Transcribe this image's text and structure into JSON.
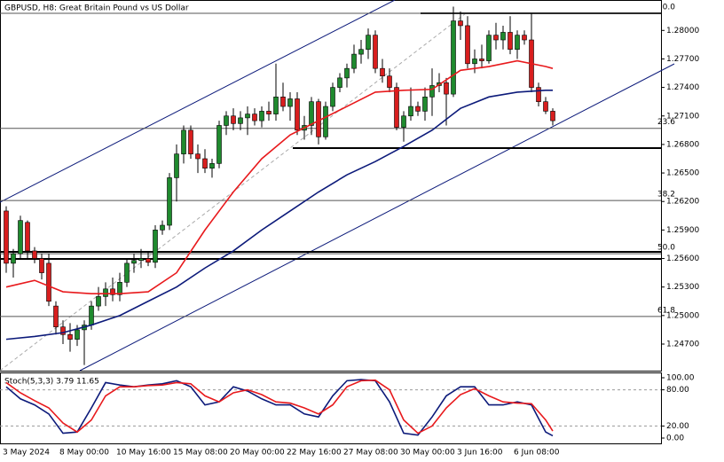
{
  "chart_data": [
    {
      "type": "candlestick",
      "title": "GBPUSD, H8:  Great Britain Pound vs US Dollar",
      "categories": [
        "3 May 2024",
        null,
        null,
        null,
        null,
        null,
        null,
        null,
        "8 May 00:00",
        null,
        null,
        null,
        null,
        null,
        null,
        null,
        "10 May 16:00",
        null,
        null,
        null,
        null,
        null,
        null,
        null,
        "15 May 08:00",
        null,
        null,
        null,
        null,
        null,
        null,
        null,
        "20 May 00:00",
        null,
        null,
        null,
        null,
        null,
        null,
        null,
        "22 May 16:00",
        null,
        null,
        null,
        null,
        null,
        null,
        null,
        "27 May 08:00",
        null,
        null,
        null,
        null,
        null,
        null,
        null,
        "30 May 00:00",
        null,
        null,
        null,
        null,
        null,
        null,
        null,
        "3 Jun 16:00",
        null,
        null,
        null,
        null,
        null,
        null,
        null,
        "6 Jun 08:00",
        null,
        null,
        null,
        null,
        null
      ],
      "open": [
        1.261,
        1.2555,
        1.2565,
        1.2598,
        1.2568,
        1.256,
        1.2555,
        1.251,
        1.2488,
        1.248,
        1.2475,
        1.2485,
        1.249,
        1.251,
        1.252,
        1.2528,
        1.2522,
        1.2535,
        1.2555,
        1.2558,
        1.256,
        1.2556,
        1.259,
        1.2595,
        1.2645,
        1.267,
        1.2695,
        1.267,
        1.2665,
        1.2655,
        1.266,
        1.27,
        1.271,
        1.2702,
        1.2708,
        1.2712,
        1.2705,
        1.2715,
        1.2712,
        1.273,
        1.272,
        1.2728,
        1.2695,
        1.27,
        1.2725,
        1.2688,
        1.272,
        1.274,
        1.275,
        1.276,
        1.2775,
        1.278,
        1.2795,
        1.276,
        1.2752,
        1.274,
        1.2698,
        1.271,
        1.272,
        1.2715,
        1.273,
        1.2742,
        1.2745,
        1.2733,
        1.281,
        1.2805,
        1.2765,
        1.277,
        1.2768,
        1.2795,
        1.279,
        1.2798,
        1.278,
        1.2795,
        1.279,
        1.274,
        1.2725,
        1.2715
      ],
      "high": [
        1.2615,
        1.257,
        1.2605,
        1.26,
        1.2572,
        1.2565,
        1.2565,
        1.2515,
        1.2495,
        1.2492,
        1.249,
        1.2495,
        1.2515,
        1.253,
        1.2535,
        1.254,
        1.2545,
        1.256,
        1.2565,
        1.257,
        1.2568,
        1.2595,
        1.26,
        1.265,
        1.268,
        1.27,
        1.27,
        1.268,
        1.2675,
        1.2665,
        1.2705,
        1.2715,
        1.2718,
        1.2715,
        1.272,
        1.2718,
        1.272,
        1.2725,
        1.2765,
        1.2745,
        1.2735,
        1.2735,
        1.271,
        1.273,
        1.2728,
        1.2725,
        1.2745,
        1.2755,
        1.2765,
        1.2785,
        1.279,
        1.2802,
        1.28,
        1.277,
        1.276,
        1.2745,
        1.2715,
        1.274,
        1.2725,
        1.274,
        1.276,
        1.2755,
        1.275,
        1.2825,
        1.282,
        1.2815,
        1.278,
        1.2785,
        1.28,
        1.2808,
        1.2805,
        1.2815,
        1.28,
        1.28,
        1.2818,
        1.2745,
        1.273,
        1.2718
      ],
      "low": [
        1.2545,
        1.254,
        1.256,
        1.256,
        1.2555,
        1.2538,
        1.251,
        1.248,
        1.247,
        1.2462,
        1.2468,
        1.2448,
        1.2485,
        1.2505,
        1.251,
        1.2515,
        1.2515,
        1.253,
        1.2545,
        1.255,
        1.2552,
        1.255,
        1.2585,
        1.259,
        1.262,
        1.266,
        1.2665,
        1.265,
        1.265,
        1.2645,
        1.2655,
        1.269,
        1.2695,
        1.2695,
        1.269,
        1.27,
        1.2698,
        1.2705,
        1.2705,
        1.2715,
        1.2705,
        1.269,
        1.2685,
        1.269,
        1.268,
        1.2685,
        1.2715,
        1.2735,
        1.274,
        1.2755,
        1.2765,
        1.277,
        1.2755,
        1.2745,
        1.2735,
        1.2695,
        1.2683,
        1.2705,
        1.271,
        1.2705,
        1.271,
        1.2735,
        1.27,
        1.273,
        1.279,
        1.276,
        1.2755,
        1.276,
        1.2765,
        1.278,
        1.278,
        1.2775,
        1.277,
        1.2785,
        1.2735,
        1.272,
        1.2712,
        1.27
      ],
      "close": [
        1.2555,
        1.2565,
        1.26,
        1.2568,
        1.256,
        1.2545,
        1.2515,
        1.2488,
        1.248,
        1.2475,
        1.2485,
        1.249,
        1.251,
        1.252,
        1.2528,
        1.2522,
        1.2535,
        1.2555,
        1.2558,
        1.256,
        1.2556,
        1.259,
        1.2595,
        1.2645,
        1.267,
        1.2695,
        1.267,
        1.2665,
        1.2655,
        1.266,
        1.27,
        1.271,
        1.2702,
        1.2708,
        1.2712,
        1.2705,
        1.2715,
        1.2712,
        1.273,
        1.272,
        1.2728,
        1.2695,
        1.27,
        1.2725,
        1.2688,
        1.272,
        1.274,
        1.275,
        1.276,
        1.2775,
        1.278,
        1.2795,
        1.276,
        1.2752,
        1.274,
        1.2698,
        1.271,
        1.272,
        1.2715,
        1.273,
        1.2742,
        1.2745,
        1.2733,
        1.281,
        1.2805,
        1.2765,
        1.277,
        1.2768,
        1.2795,
        1.279,
        1.2798,
        1.278,
        1.2795,
        1.279,
        1.274,
        1.2725,
        1.2715,
        1.2705
      ],
      "up_color": "#1f8a2e",
      "down_color": "#d81e1e",
      "overlays": [
        {
          "color": "#e8191c",
          "x": [
            0,
            4,
            8,
            12,
            16,
            20,
            24,
            28,
            32,
            36,
            40,
            44,
            48,
            52,
            56,
            60,
            64,
            68,
            72,
            76,
            77
          ],
          "values": [
            1.253,
            1.2537,
            1.2525,
            1.2523,
            1.2523,
            1.2525,
            1.2545,
            1.259,
            1.263,
            1.2665,
            1.269,
            1.2705,
            1.272,
            1.2735,
            1.2737,
            1.2738,
            1.2758,
            1.2762,
            1.2768,
            1.2762,
            1.276
          ]
        },
        {
          "color": "#0c1a7a",
          "x": [
            0,
            4,
            8,
            12,
            16,
            20,
            24,
            28,
            32,
            36,
            40,
            44,
            48,
            52,
            56,
            60,
            64,
            68,
            72,
            76,
            77
          ],
          "values": [
            1.2475,
            1.2478,
            1.2482,
            1.249,
            1.25,
            1.2515,
            1.253,
            1.255,
            1.2568,
            1.259,
            1.261,
            1.263,
            1.2648,
            1.2662,
            1.2678,
            1.2695,
            1.2718,
            1.273,
            1.2735,
            1.2737,
            1.2737
          ]
        }
      ],
      "fib_levels": [
        {
          "label": "0.0",
          "price": 1.2818
        },
        {
          "label": "23.6",
          "price": 1.2697
        },
        {
          "label": "38.2",
          "price": 1.2621
        },
        {
          "label": "50.0",
          "price": 1.2565
        },
        {
          "label": "61.8",
          "price": 1.2499
        }
      ],
      "ylim": [
        1.2442,
        1.2832
      ],
      "yticks": [
        {
          "value": 1.28,
          "label": "1.28000"
        },
        {
          "value": 1.277,
          "label": "1.27700"
        },
        {
          "value": 1.274,
          "label": "1.27400"
        },
        {
          "value": 1.271,
          "label": "1.27100"
        },
        {
          "value": 1.268,
          "label": "1.26800"
        },
        {
          "value": 1.265,
          "label": "1.26500"
        },
        {
          "value": 1.262,
          "label": "1.26200"
        },
        {
          "value": 1.259,
          "label": "1.25900"
        },
        {
          "value": 1.256,
          "label": "1.25600"
        },
        {
          "value": 1.253,
          "label": "1.25300"
        },
        {
          "value": 1.25,
          "label": "1.25000"
        },
        {
          "value": 1.247,
          "label": "1.24700"
        }
      ]
    },
    {
      "type": "line",
      "title": "Stoch(5,3,3) 3.79 11.65",
      "x": [
        0,
        2,
        4,
        6,
        8,
        10,
        12,
        14,
        16,
        18,
        20,
        22,
        24,
        26,
        28,
        30,
        32,
        34,
        36,
        38,
        40,
        42,
        44,
        46,
        48,
        50,
        52,
        54,
        56,
        58,
        60,
        62,
        64,
        66,
        68,
        70,
        72,
        74,
        76,
        77
      ],
      "series": [
        {
          "color": "#0c1a7a",
          "values": [
            85,
            65,
            55,
            40,
            8,
            10,
            50,
            92,
            88,
            85,
            88,
            90,
            95,
            85,
            55,
            60,
            85,
            78,
            65,
            55,
            55,
            40,
            35,
            70,
            95,
            97,
            95,
            60,
            8,
            5,
            35,
            70,
            85,
            85,
            55,
            55,
            60,
            55,
            10,
            3.79
          ]
        },
        {
          "color": "#e8191c",
          "values": [
            92,
            75,
            62,
            50,
            25,
            10,
            30,
            70,
            85,
            85,
            87,
            88,
            92,
            90,
            70,
            60,
            75,
            80,
            72,
            60,
            58,
            50,
            40,
            55,
            85,
            95,
            96,
            80,
            30,
            8,
            20,
            50,
            72,
            82,
            70,
            60,
            58,
            57,
            30,
            11.65
          ]
        }
      ],
      "levels": [
        80,
        20
      ],
      "ylim": [
        -8.8,
        108.8
      ],
      "yticks": [
        {
          "value": 100,
          "label": "100.00"
        },
        {
          "value": 80,
          "label": "80.00"
        },
        {
          "value": 20,
          "label": "20.00"
        },
        {
          "value": 0,
          "label": "0.00"
        }
      ]
    }
  ]
}
